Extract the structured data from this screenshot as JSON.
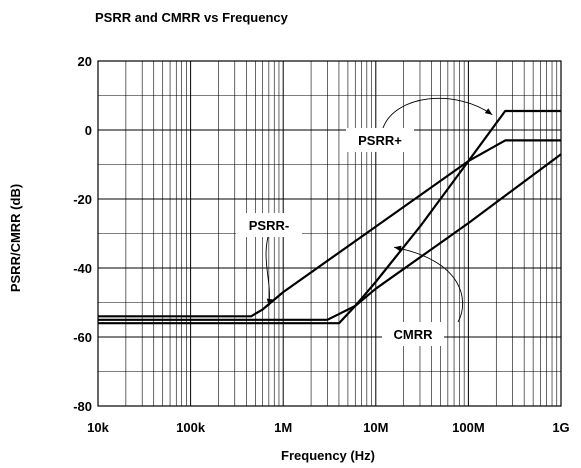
{
  "chart_data": {
    "type": "line",
    "title": "PSRR and CMRR vs Frequency",
    "xlabel": "Frequency (Hz)",
    "ylabel": "PSRR/CMRR (dB)",
    "x_scale": "log",
    "xlim": [
      10000,
      1000000000
    ],
    "ylim": [
      -80,
      20
    ],
    "x_ticks": [
      10000,
      100000,
      1000000,
      10000000,
      100000000,
      1000000000
    ],
    "x_tick_labels": [
      "10k",
      "100k",
      "1M",
      "10M",
      "100M",
      "1G"
    ],
    "y_ticks": [
      20,
      0,
      -20,
      -40,
      -60,
      -80
    ],
    "y_tick_labels": [
      "20",
      "0",
      "-20",
      "-40",
      "-60",
      "-80"
    ],
    "grid": true,
    "legend": "none",
    "series": [
      {
        "name": "PSRR+",
        "x": [
          10000,
          4000000,
          6000000,
          10000000,
          30000000,
          100000000,
          250000000,
          1000000000
        ],
        "y": [
          -56,
          -56,
          -51,
          -44,
          -28,
          -9,
          5.5,
          5.5
        ]
      },
      {
        "name": "PSRR-",
        "x": [
          10000,
          450000,
          600000,
          1000000,
          10000000,
          100000000,
          250000000,
          1000000000
        ],
        "y": [
          -54,
          -54,
          -52,
          -47,
          -28,
          -9,
          -3,
          -3
        ]
      },
      {
        "name": "CMRR",
        "x": [
          10000,
          2500000,
          3000000,
          6000000,
          10000000,
          100000000,
          1000000000
        ],
        "y": [
          -55,
          -55,
          -55,
          -51,
          -46,
          -27,
          -7
        ]
      }
    ],
    "annotations": [
      {
        "label": "PSRR+",
        "points_to": [
          200000000,
          5
        ]
      },
      {
        "label": "PSRR-",
        "points_to": [
          700000,
          -51
        ]
      },
      {
        "label": "CMRR",
        "points_to": [
          15000000,
          -34
        ]
      }
    ]
  }
}
